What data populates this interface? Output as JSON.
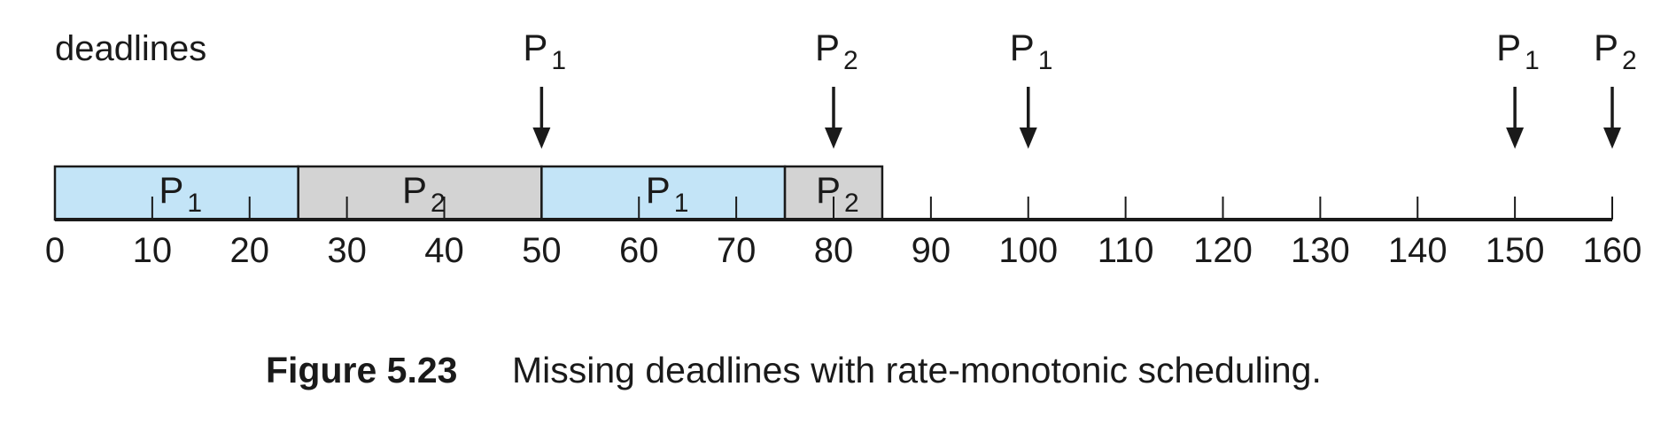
{
  "heading": "deadlines",
  "caption": {
    "number": "Figure 5.23",
    "text": "Missing deadlines with rate-monotonic scheduling."
  },
  "colors": {
    "p1": "#c3e4f7",
    "p2": "#d3d3d3",
    "line": "#1a1a1a"
  },
  "chart_data": {
    "type": "gantt",
    "axis": {
      "min": 0,
      "max": 160,
      "ticks": [
        0,
        10,
        20,
        30,
        40,
        50,
        60,
        70,
        80,
        90,
        100,
        110,
        120,
        130,
        140,
        150,
        160
      ]
    },
    "segments": [
      {
        "process": "P",
        "sub": "1",
        "start": 0,
        "end": 25,
        "color": "#c3e4f7"
      },
      {
        "process": "P",
        "sub": "2",
        "start": 25,
        "end": 50,
        "color": "#d3d3d3"
      },
      {
        "process": "P",
        "sub": "1",
        "start": 50,
        "end": 75,
        "color": "#c3e4f7"
      },
      {
        "process": "P",
        "sub": "2",
        "start": 75,
        "end": 85,
        "color": "#d3d3d3"
      }
    ],
    "deadlines": [
      {
        "at": 50,
        "labels": [
          {
            "p": "P",
            "sub": "1"
          }
        ]
      },
      {
        "at": 80,
        "labels": [
          {
            "p": "P",
            "sub": "2"
          }
        ]
      },
      {
        "at": 100,
        "labels": [
          {
            "p": "P",
            "sub": "1"
          }
        ]
      },
      {
        "at": 150,
        "labels": [
          {
            "p": "P",
            "sub": "1"
          }
        ]
      },
      {
        "at": 160,
        "labels": [
          {
            "p": "P",
            "sub": "2"
          }
        ]
      }
    ],
    "deadline_separator": ", "
  }
}
